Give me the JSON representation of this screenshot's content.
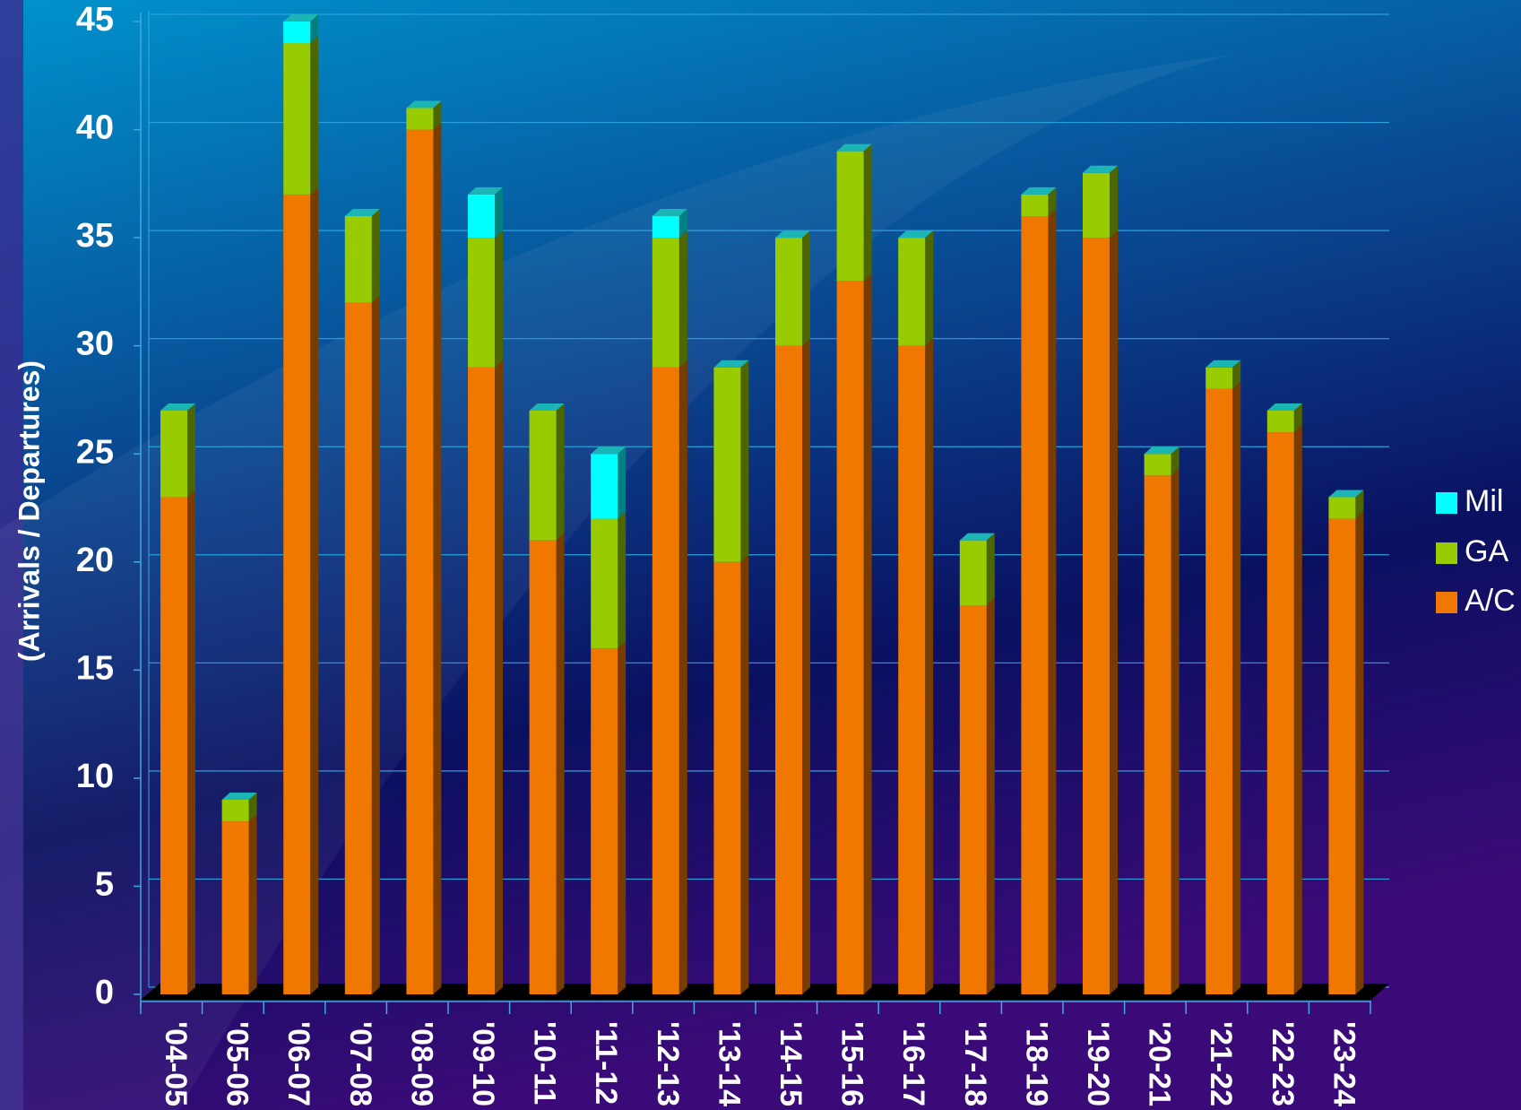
{
  "chart_data": {
    "type": "bar",
    "stacked": true,
    "y_label": "(Arrivals / Departures)",
    "categories": [
      "'04-05",
      "'05-06",
      "'06-07",
      "'07-08",
      "'08-09",
      "'09-10",
      "'10-11",
      "'11-12",
      "'12-13",
      "'13-14",
      "'14-15",
      "'15-16",
      "'16-17",
      "'17-18",
      "'18-19",
      "'19-20",
      "'20-21",
      "'21-22",
      "'22-23",
      "'23-24"
    ],
    "series": [
      {
        "name": "A/C",
        "color": "#f07800",
        "values": [
          23,
          8,
          37,
          32,
          40,
          29,
          21,
          16,
          29,
          20,
          30,
          33,
          30,
          18,
          36,
          35,
          24,
          28,
          26,
          22
        ]
      },
      {
        "name": "GA",
        "color": "#99cc00",
        "values": [
          4,
          1,
          7,
          4,
          1,
          6,
          6,
          6,
          6,
          9,
          5,
          6,
          5,
          3,
          1,
          3,
          1,
          1,
          1,
          1
        ]
      },
      {
        "name": "Mil",
        "color": "#00ffff",
        "values": [
          0,
          0,
          1,
          0,
          0,
          2,
          0,
          3,
          1,
          0,
          0,
          0,
          0,
          0,
          0,
          0,
          0,
          0,
          0,
          0
        ]
      }
    ],
    "ylim": [
      0,
      45
    ],
    "yticks": [
      0,
      5,
      10,
      15,
      20,
      25,
      30,
      35,
      40,
      45
    ],
    "grid": true,
    "legend": "right"
  }
}
